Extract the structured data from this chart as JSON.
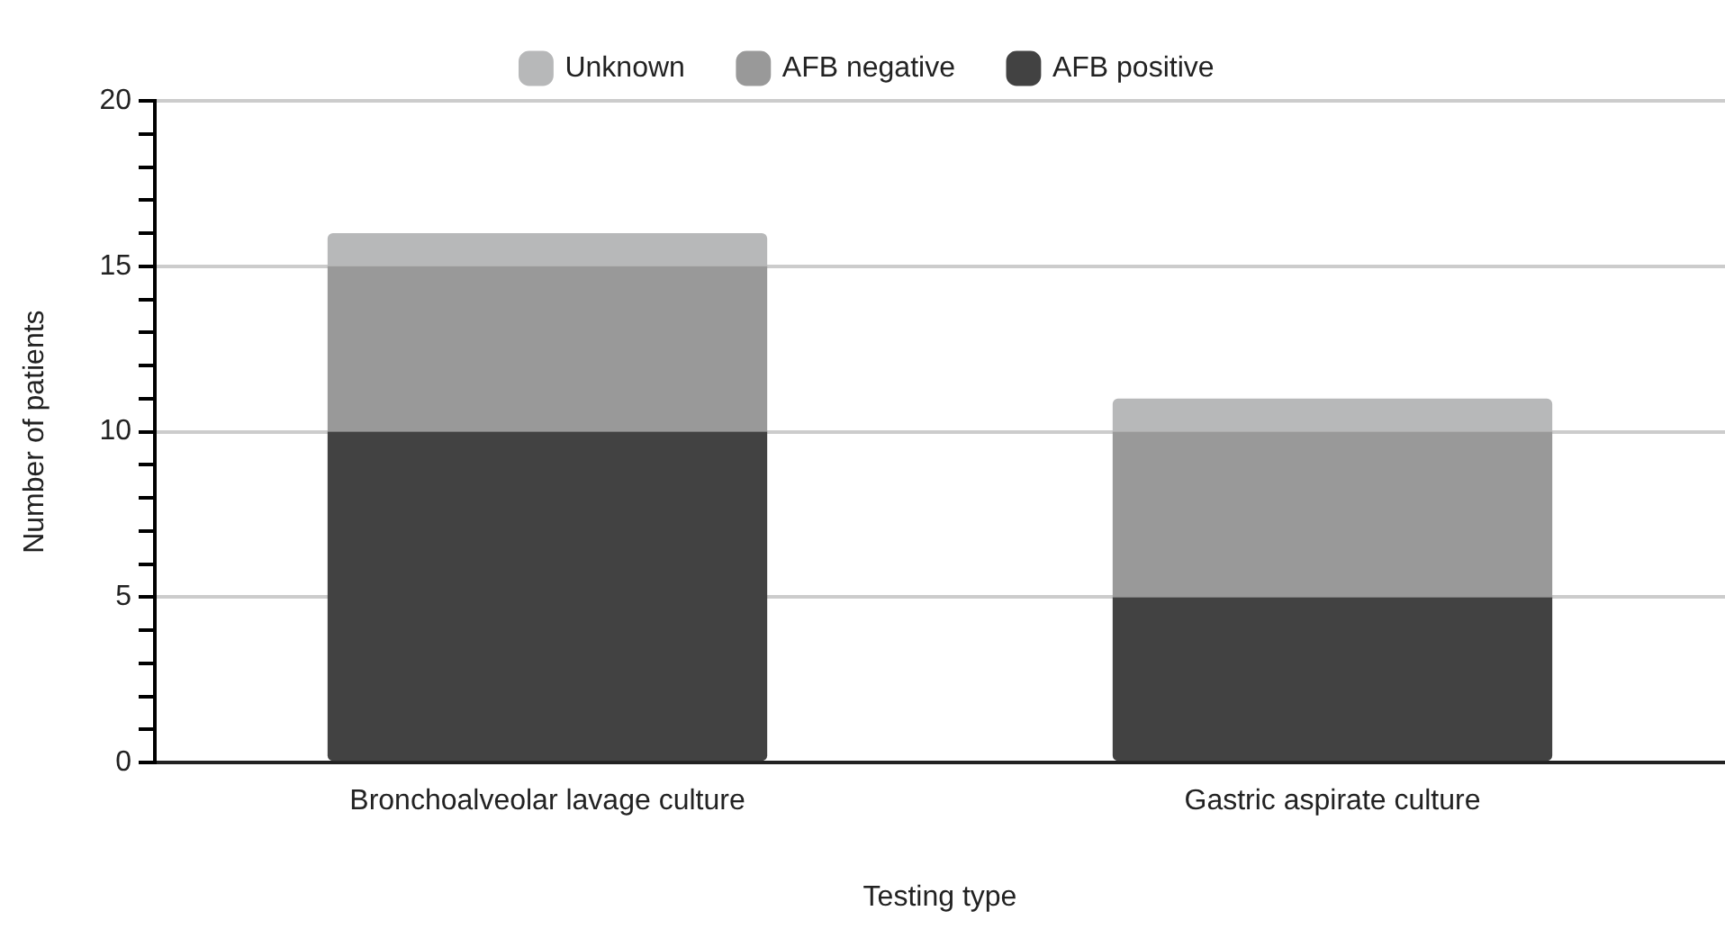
{
  "chart_data": {
    "type": "bar",
    "stacked": true,
    "xlabel": "Testing type",
    "ylabel": "Number of patients",
    "categories": [
      "Bronchoalveolar lavage culture",
      "Gastric aspirate culture"
    ],
    "series": [
      {
        "name": "AFB positive",
        "color": "#424242",
        "values": [
          10,
          5
        ]
      },
      {
        "name": "AFB negative",
        "color": "#999999",
        "values": [
          5,
          5
        ]
      },
      {
        "name": "Unknown",
        "color": "#b7b8b9",
        "values": [
          1,
          1
        ]
      }
    ],
    "ylim": [
      0,
      20
    ],
    "yticks": [
      0,
      {
        "value": 1,
        "label": null
      },
      {
        "value": 2,
        "label": null
      },
      {
        "value": 3,
        "label": null
      },
      {
        "value": 4,
        "label": null
      },
      5,
      {
        "value": 6,
        "label": null
      },
      {
        "value": 7,
        "label": null
      },
      {
        "value": 8,
        "label": null
      },
      {
        "value": 9,
        "label": null
      },
      10,
      {
        "value": 11,
        "label": null
      },
      {
        "value": 12,
        "label": null
      },
      {
        "value": 13,
        "label": null
      },
      {
        "value": 14,
        "label": null
      },
      15,
      {
        "value": 16,
        "label": null
      },
      {
        "value": 17,
        "label": null
      },
      {
        "value": 18,
        "label": null
      },
      {
        "value": 19,
        "label": null
      },
      20
    ],
    "grid": "y",
    "legend": "top"
  }
}
